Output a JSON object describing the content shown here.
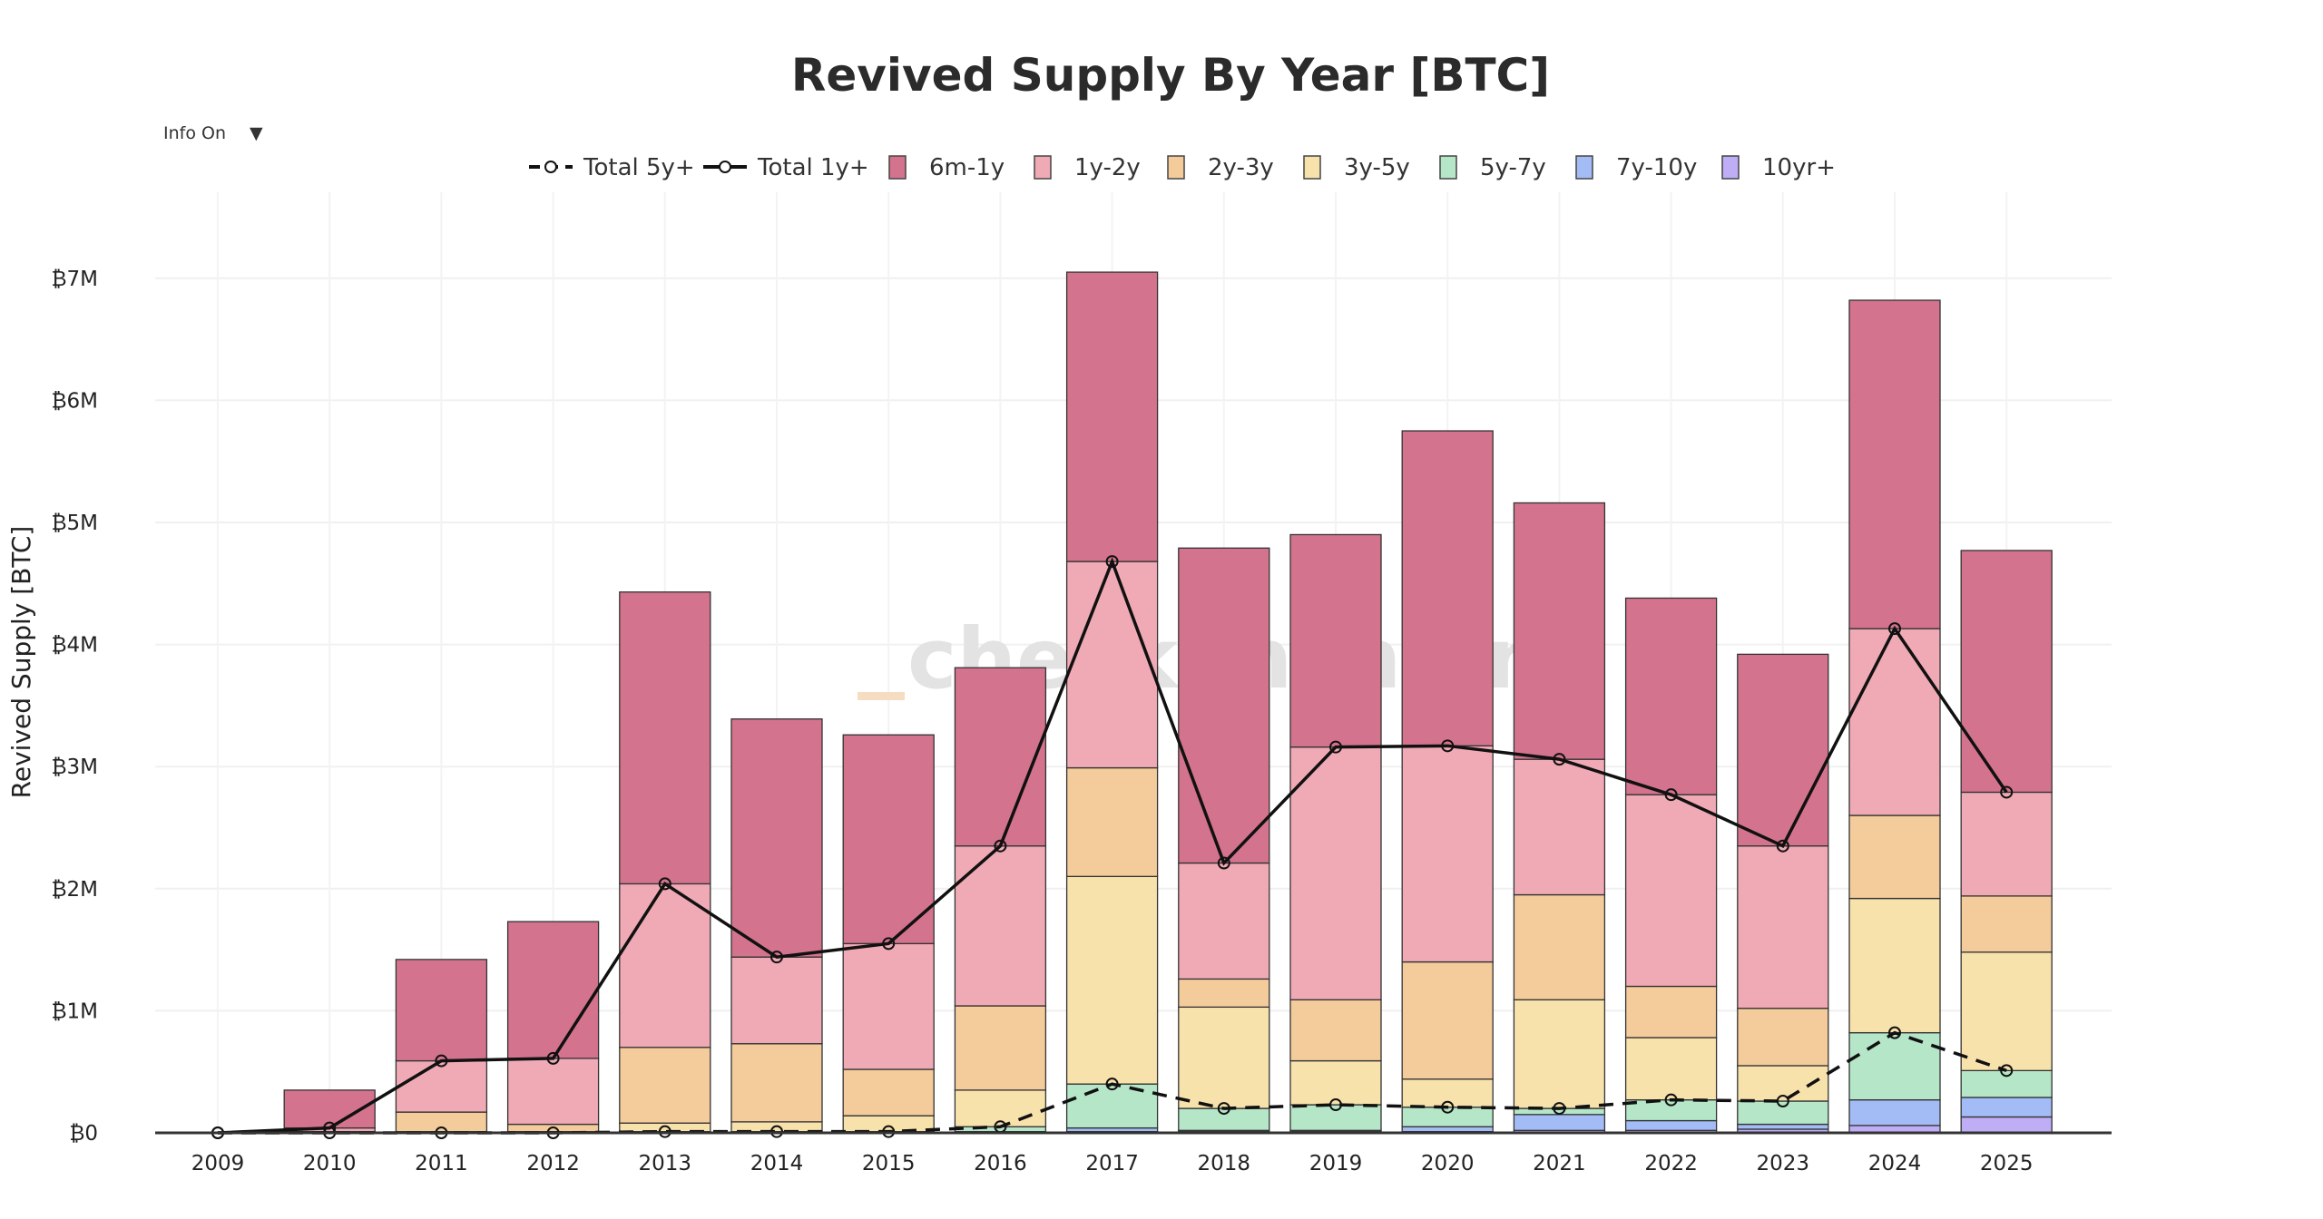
{
  "controls": {
    "info_toggle_label": "Info On",
    "info_toggle_arrow": "▼"
  },
  "watermark": "checkonchain",
  "chart_data": {
    "type": "bar",
    "stacked": true,
    "title": "Revived Supply By Year [BTC]",
    "xlabel": "",
    "ylabel": "Revived Supply [BTC]",
    "ylim": [
      0,
      7.7
    ],
    "y_unit": "million BTC",
    "y_ticks": [
      0,
      1,
      2,
      3,
      4,
      5,
      6,
      7
    ],
    "y_tick_labels": [
      "₿0",
      "₿1M",
      "₿2M",
      "₿3M",
      "₿4M",
      "₿5M",
      "₿6M",
      "₿7M"
    ],
    "grid": true,
    "legend_position": "top-center",
    "categories": [
      "2009",
      "2010",
      "2011",
      "2012",
      "2013",
      "2014",
      "2015",
      "2016",
      "2017",
      "2018",
      "2019",
      "2020",
      "2021",
      "2022",
      "2023",
      "2024",
      "2025"
    ],
    "series": [
      {
        "name": "10yr+",
        "color": "#bfaef5",
        "values": [
          0,
          0,
          0,
          0,
          0,
          0,
          0,
          0,
          0.01,
          0.01,
          0.01,
          0.01,
          0.02,
          0.02,
          0.03,
          0.06,
          0.13
        ]
      },
      {
        "name": "7y-10y",
        "color": "#a3bcf5",
        "values": [
          0,
          0,
          0,
          0,
          0,
          0,
          0,
          0.01,
          0.03,
          0.01,
          0.01,
          0.04,
          0.13,
          0.08,
          0.04,
          0.21,
          0.16
        ]
      },
      {
        "name": "5y-7y",
        "color": "#b5e6c8",
        "values": [
          0,
          0,
          0,
          0,
          0.01,
          0.01,
          0.01,
          0.04,
          0.36,
          0.18,
          0.21,
          0.16,
          0.05,
          0.17,
          0.19,
          0.55,
          0.22
        ]
      },
      {
        "name": "3y-5y",
        "color": "#f8e2ac",
        "values": [
          0,
          0,
          0.01,
          0.01,
          0.07,
          0.08,
          0.13,
          0.3,
          1.7,
          0.83,
          0.36,
          0.23,
          0.89,
          0.51,
          0.29,
          1.1,
          0.97
        ]
      },
      {
        "name": "2y-3y",
        "color": "#f4cb9a",
        "values": [
          0,
          0.01,
          0.16,
          0.06,
          0.62,
          0.64,
          0.38,
          0.69,
          0.89,
          0.23,
          0.5,
          0.96,
          0.86,
          0.42,
          0.47,
          0.68,
          0.46
        ]
      },
      {
        "name": "1y-2y",
        "color": "#f0aab5",
        "values": [
          0,
          0.03,
          0.42,
          0.54,
          1.34,
          0.71,
          1.03,
          1.31,
          1.69,
          0.95,
          2.07,
          1.77,
          1.11,
          1.57,
          1.33,
          1.53,
          0.85
        ]
      },
      {
        "name": "6m-1y",
        "color": "#d4738e",
        "values": [
          0,
          0.31,
          0.83,
          1.12,
          2.39,
          1.95,
          1.71,
          1.46,
          2.37,
          2.58,
          1.74,
          2.58,
          2.1,
          1.61,
          1.57,
          2.69,
          1.98
        ]
      }
    ],
    "lines": [
      {
        "name": "Total 5y+",
        "style": "dashed",
        "color": "#111111",
        "values": [
          0,
          0,
          0,
          0,
          0.01,
          0.01,
          0.01,
          0.05,
          0.4,
          0.2,
          0.23,
          0.21,
          0.2,
          0.27,
          0.26,
          0.82,
          0.51
        ]
      },
      {
        "name": "Total 1y+",
        "style": "solid",
        "color": "#111111",
        "values": [
          0,
          0.04,
          0.59,
          0.61,
          2.04,
          1.44,
          1.55,
          2.35,
          4.68,
          2.21,
          3.16,
          3.17,
          3.06,
          2.77,
          2.35,
          4.13,
          2.79
        ]
      }
    ],
    "legend_order": [
      "Total 5y+",
      "Total 1y+",
      "6m-1y",
      "1y-2y",
      "2y-3y",
      "3y-5y",
      "5y-7y",
      "7y-10y",
      "10yr+"
    ]
  }
}
